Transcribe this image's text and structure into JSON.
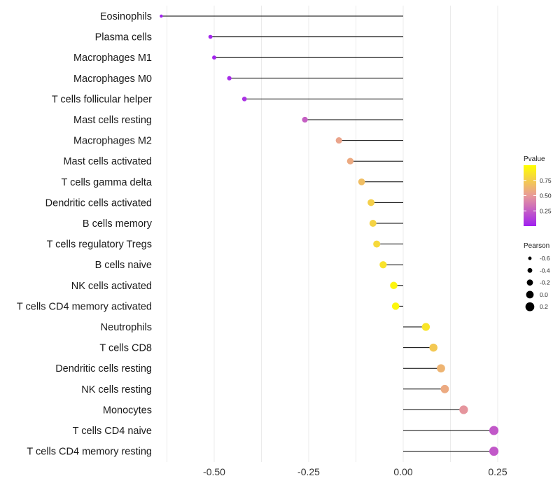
{
  "chart_data": {
    "type": "lollipop",
    "title": "",
    "xlabel": "",
    "ylabel": "",
    "xlim": [
      -0.65,
      0.3
    ],
    "x_ticks": [
      -0.5,
      -0.25,
      0.0,
      0.25
    ],
    "x_tick_labels": [
      "-0.50",
      "-0.25",
      "0.00",
      "0.25"
    ],
    "grid": true,
    "categories": [
      "Eosinophils",
      "Plasma cells",
      "Macrophages M1",
      "Macrophages M0",
      "T cells follicular helper",
      "Mast cells resting",
      "Macrophages M2",
      "Mast cells activated",
      "T cells gamma delta",
      "Dendritic cells activated",
      "B cells memory",
      "T cells regulatory  Tregs ",
      "B cells naive",
      "NK cells activated",
      "T cells CD4 memory activated",
      "Neutrophils",
      "T cells CD8",
      "Dendritic cells resting",
      "NK cells resting",
      "Monocytes",
      "T cells CD4 naive",
      "T cells CD4 memory resting"
    ],
    "values": [
      -0.64,
      -0.51,
      -0.5,
      -0.46,
      -0.42,
      -0.26,
      -0.17,
      -0.14,
      -0.11,
      -0.085,
      -0.08,
      -0.07,
      -0.053,
      -0.025,
      -0.02,
      0.06,
      0.08,
      0.1,
      0.11,
      0.16,
      0.24,
      0.24
    ],
    "pvalues": [
      0.01,
      0.02,
      0.02,
      0.04,
      0.07,
      0.26,
      0.55,
      0.58,
      0.68,
      0.76,
      0.78,
      0.81,
      0.86,
      0.95,
      0.96,
      0.87,
      0.73,
      0.63,
      0.58,
      0.48,
      0.23,
      0.23
    ],
    "color_legend": {
      "title": "Pvalue",
      "ticks": [
        0.25,
        0.5,
        0.75
      ],
      "tick_labels": [
        "0.25",
        "0.50",
        "0.75"
      ],
      "range": [
        0.0,
        1.0
      ],
      "low_color": "#a020f0",
      "mid_color": "#e89a9a",
      "high_color": "#ffff00",
      "position": "right"
    },
    "size_legend": {
      "title": "Pearson",
      "values": [
        -0.6,
        -0.4,
        -0.2,
        0.0,
        0.2
      ],
      "labels": [
        "-0.6",
        "-0.4",
        "-0.2",
        "0.0",
        "0.2"
      ],
      "position": "right"
    },
    "colors": {
      "stem": "#000000",
      "grid": "#ebebeb"
    }
  }
}
